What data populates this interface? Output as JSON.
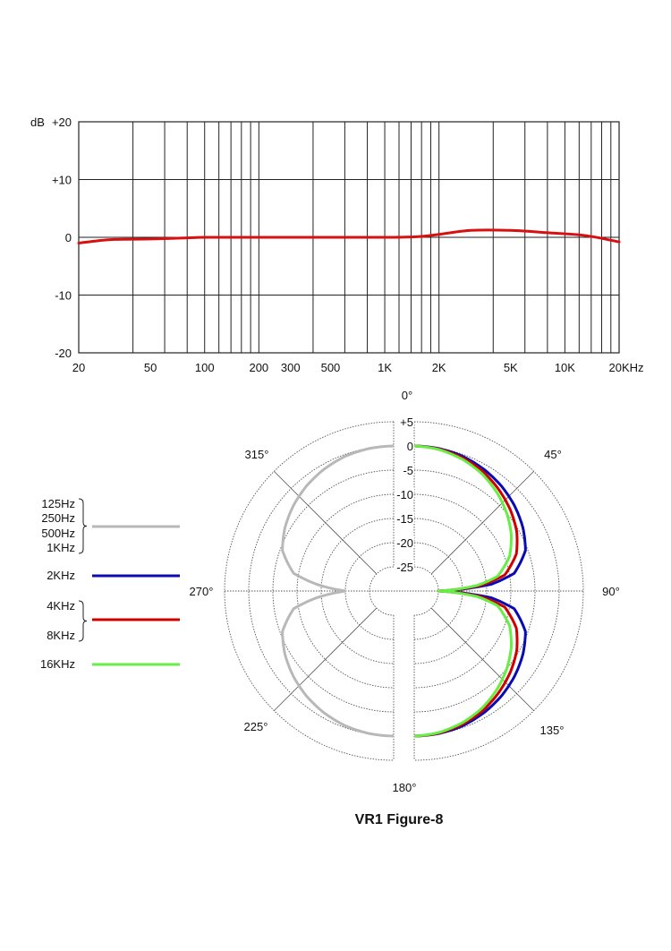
{
  "chart_data": [
    {
      "type": "line",
      "x_scale": "log",
      "xlim": [
        20,
        20000
      ],
      "ylim": [
        -20,
        20
      ],
      "ylabel": "dB",
      "grid": true,
      "x_tick_labels": [
        {
          "value": 20,
          "label": "20"
        },
        {
          "value": 50,
          "label": "50"
        },
        {
          "value": 100,
          "label": "100"
        },
        {
          "value": 200,
          "label": "200"
        },
        {
          "value": 300,
          "label": "300"
        },
        {
          "value": 500,
          "label": "500"
        },
        {
          "value": 1000,
          "label": "1K"
        },
        {
          "value": 2000,
          "label": "2K"
        },
        {
          "value": 5000,
          "label": "5K"
        },
        {
          "value": 10000,
          "label": "10K"
        },
        {
          "value": 20000,
          "label": "20KHz"
        }
      ],
      "y_tick_labels": [
        {
          "value": 20,
          "label": "+20"
        },
        {
          "value": 10,
          "label": "+10"
        },
        {
          "value": 0,
          "label": "0"
        },
        {
          "value": -10,
          "label": "-10"
        },
        {
          "value": -20,
          "label": "-20"
        }
      ],
      "series": [
        {
          "color": "#d81010",
          "x": [
            20,
            30,
            50,
            80,
            100,
            200,
            500,
            1000,
            1500,
            2000,
            3000,
            5000,
            8000,
            13000,
            20000
          ],
          "y": [
            -1,
            -0.4,
            -0.3,
            -0.1,
            0,
            0,
            0,
            0,
            0.1,
            0.5,
            1.2,
            1.2,
            0.8,
            0.3,
            -0.8
          ]
        }
      ]
    },
    {
      "type": "polar",
      "title": "VR1 Figure-8",
      "r_range_db": [
        -25,
        5
      ],
      "r_tick_labels": [
        "+5",
        "0",
        "-5",
        "-10",
        "-15",
        "-20",
        "-25"
      ],
      "r_tick_values": [
        5,
        0,
        -5,
        -10,
        -15,
        -20,
        -25
      ],
      "angle_labels": [
        "0°",
        "45°",
        "90°",
        "135°",
        "180°",
        "225°",
        "270°",
        "315°"
      ],
      "angles_deg": [
        0,
        10,
        20,
        30,
        40,
        50,
        60,
        70,
        80,
        85,
        90
      ],
      "symmetry": "figure-8, mirrored about 90°",
      "series": [
        {
          "name": "125Hz 250Hz 500Hz 1KHz",
          "side": "left",
          "color": "#b8b8b8",
          "labels": [
            "125Hz",
            "250Hz",
            "500Hz",
            "1KHz"
          ],
          "db": [
            0,
            -0.1,
            -0.4,
            -1,
            -1.8,
            -2.8,
            -4,
            -5.5,
            -9,
            -14,
            -20
          ]
        },
        {
          "name": "2KHz",
          "side": "right",
          "color": "#0a0ab4",
          "labels": [
            "2KHz"
          ],
          "db": [
            0,
            -0.1,
            -0.4,
            -1,
            -1.8,
            -2.8,
            -4,
            -5.5,
            -9,
            -14,
            -25
          ]
        },
        {
          "name": "4KHz 8KHz",
          "side": "right",
          "color": "#d00000",
          "labels": [
            "4KHz",
            "8KHz"
          ],
          "db": [
            0,
            -0.2,
            -0.7,
            -1.5,
            -2.7,
            -4,
            -5.5,
            -7.5,
            -11,
            -16,
            -25
          ]
        },
        {
          "name": "16KHz",
          "side": "right",
          "color": "#66ee44",
          "labels": [
            "16KHz"
          ],
          "db": [
            0,
            -0.3,
            -1,
            -2,
            -3.4,
            -5,
            -6.8,
            -9,
            -12.5,
            -17,
            -25
          ]
        }
      ]
    }
  ]
}
